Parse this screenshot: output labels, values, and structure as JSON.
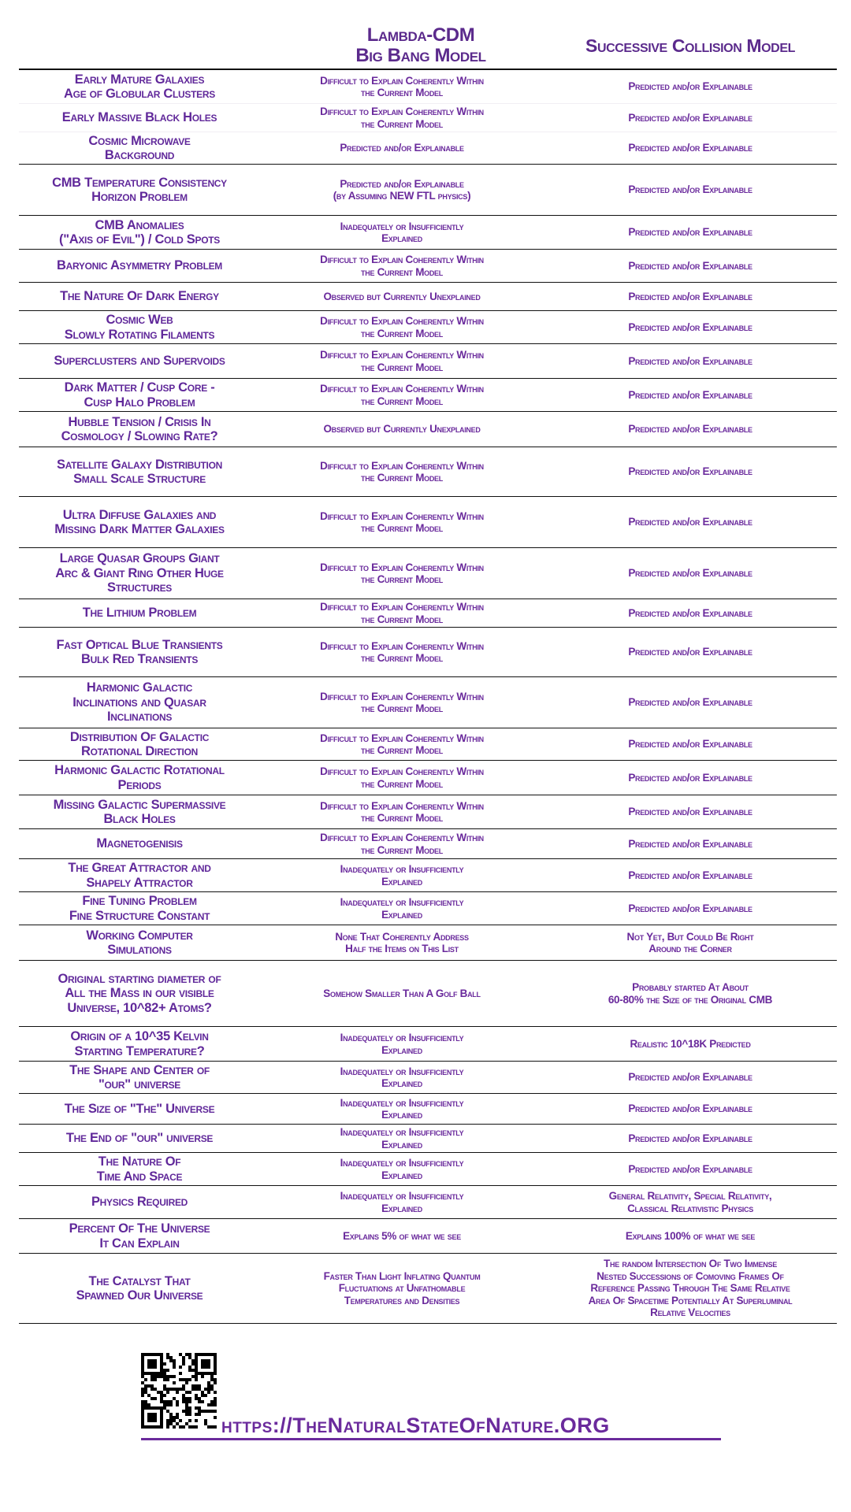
{
  "headers": {
    "lambda": "Lambda-CDM\nBig Bang Model",
    "collision": "Successive Collision Model"
  },
  "rows": [
    {
      "topic": "Early Mature Galaxies\nAge of Globular Clusters",
      "lambda": "Difficult to Explain Coherently Within\nthe Current Model",
      "collision": "Predicted and/or Explainable"
    },
    {
      "topic": "Early Massive Black Holes",
      "lambda": "Difficult to Explain Coherently Within\nthe Current Model",
      "collision": "Predicted and/or Explainable"
    },
    {
      "topic": "Cosmic Microwave\nBackground",
      "lambda": "Predicted and/or Explainable",
      "collision": "Predicted and/or Explainable"
    },
    {
      "topic": "CMB Temperature Consistency\nHorizon Problem",
      "lambda": "Predicted and/or Explainable\n(by Assuming NEW FTL physics)",
      "collision": "Predicted and/or Explainable"
    },
    {
      "topic": "CMB Anomalies\n(\"Axis of Evil\") / Cold Spots",
      "lambda": "Inadequately or Insufficiently\nExplained",
      "collision": "Predicted and/or Explainable"
    },
    {
      "topic": "Baryonic Asymmetry Problem",
      "lambda": "Difficult to Explain Coherently Within\nthe Current Model",
      "collision": "Predicted and/or Explainable"
    },
    {
      "topic": "The Nature Of Dark Energy",
      "lambda": "Observed but Currently Unexplained",
      "collision": "Predicted and/or Explainable"
    },
    {
      "topic": "Cosmic Web\nSlowly Rotating Filaments",
      "lambda": "Difficult to Explain Coherently Within\nthe Current Model",
      "collision": "Predicted and/or Explainable"
    },
    {
      "topic": "Superclusters and Supervoids",
      "lambda": "Difficult to Explain Coherently Within\nthe Current Model",
      "collision": "Predicted and/or Explainable"
    },
    {
      "topic": "Dark Matter / Cusp Core -\nCusp Halo Problem",
      "lambda": "Difficult to Explain Coherently Within\nthe Current Model",
      "collision": "Predicted and/or Explainable"
    },
    {
      "topic": "Hubble Tension / Crisis In\nCosmology / Slowing Rate?",
      "lambda": "Observed but Currently Unexplained",
      "collision": "Predicted and/or Explainable"
    },
    {
      "topic": "Satellite Galaxy Distribution\nSmall Scale Structure",
      "lambda": "Difficult to Explain Coherently Within\nthe Current Model",
      "collision": "Predicted and/or Explainable"
    },
    {
      "topic": "Ultra Diffuse Galaxies and\nMissing Dark Matter Galaxies",
      "lambda": "Difficult to Explain Coherently Within\nthe Current Model",
      "collision": "Predicted and/or Explainable"
    },
    {
      "topic": "Large Quasar Groups      Giant\nArc & Giant Ring    Other Huge\nStructures",
      "lambda": "Difficult to Explain Coherently Within\nthe Current Model",
      "collision": "Predicted and/or Explainable"
    },
    {
      "topic": "The Lithium Problem",
      "lambda": "Difficult to Explain Coherently Within\nthe Current Model",
      "collision": "Predicted and/or Explainable"
    },
    {
      "topic": "Fast Optical Blue Transients\nBulk Red Transients",
      "lambda": "Difficult to Explain Coherently Within\nthe Current Model",
      "collision": "Predicted and/or Explainable"
    },
    {
      "topic": "Harmonic Galactic\nInclinations and Quasar\nInclinations",
      "lambda": "Difficult to Explain Coherently Within\nthe Current Model",
      "collision": "Predicted and/or Explainable"
    },
    {
      "topic": "Distribution Of Galactic\nRotational Direction",
      "lambda": "Difficult to Explain Coherently Within\nthe Current Model",
      "collision": "Predicted and/or Explainable"
    },
    {
      "topic": "Harmonic Galactic Rotational\nPeriods",
      "lambda": "Difficult to Explain Coherently Within\nthe Current Model",
      "collision": "Predicted and/or Explainable"
    },
    {
      "topic": "Missing Galactic Supermassive\nBlack Holes",
      "lambda": "Difficult to Explain Coherently Within\nthe Current Model",
      "collision": "Predicted and/or Explainable"
    },
    {
      "topic": "Magnetogenisis",
      "lambda": "Difficult to Explain Coherently Within\nthe Current Model",
      "collision": "Predicted and/or Explainable"
    },
    {
      "topic": "The Great Attractor and\nShapely Attractor",
      "lambda": "Inadequately or Insufficiently\nExplained",
      "collision": "Predicted and/or Explainable"
    },
    {
      "topic": "Fine Tuning Problem\nFine Structure Constant",
      "lambda": "Inadequately or Insufficiently\nExplained",
      "collision": "Predicted and/or Explainable"
    },
    {
      "topic": "Working Computer\nSimulations",
      "lambda": "None That Coherently Address\nHalf the Items on This List",
      "collision": "Not Yet, But Could Be Right\nAround the Corner"
    },
    {
      "topic": "Original starting diameter of\nAll the Mass in our visible\nUniverse, 10^82+ Atoms?",
      "lambda": "Somehow Smaller Than A Golf Ball",
      "collision": "Probably started At About\n60-80% the Size of the Original CMB"
    },
    {
      "topic": "Origin of a 10^35  Kelvin\nStarting Temperature?",
      "lambda": "Inadequately or Insufficiently\nExplained",
      "collision": "Realistic 10^18K  Predicted"
    },
    {
      "topic": "The Shape and Center of\n\"our\" universe",
      "lambda": "Inadequately or Insufficiently\nExplained",
      "collision": "Predicted and/or Explainable"
    },
    {
      "topic": "The Size of \"The\" Universe",
      "lambda": "Inadequately or Insufficiently\nExplained",
      "collision": "Predicted and/or Explainable"
    },
    {
      "topic": "The End of \"our\" universe",
      "lambda": "Inadequately or Insufficiently\nExplained",
      "collision": "Predicted and/or Explainable"
    },
    {
      "topic": "The Nature Of\nTime And Space",
      "lambda": "Inadequately or Insufficiently\nExplained",
      "collision": "Predicted and/or Explainable"
    },
    {
      "topic": "Physics Required",
      "lambda": "Inadequately or Insufficiently\nExplained",
      "collision": "General Relativity, Special Relativity,\nClassical Relativistic Physics"
    },
    {
      "topic": "Percent Of The Universe\nIt Can Explain",
      "lambda": "Explains 5% of what we see",
      "collision": "Explains 100% of what we see"
    },
    {
      "topic": "The Catalyst That\nSpawned Our Universe",
      "lambda": "Faster Than Light Inflating Quantum\nFluctuations at Unfathomable\nTemperatures and Densities",
      "collision": "The random Intersection Of Two Immense\nNested Successions of Comoving Frames Of\nReference Passing Through The Same Relative\nArea Of Spacetime Potentially At Superluminal\nRelative Velocities"
    }
  ],
  "footer": {
    "qr_icon": "qr-code",
    "url": "https://TheNaturalStateOfNature.ORG"
  },
  "colors": {
    "text": "#6a2a9c",
    "header": "#5b2a8c",
    "rule": "#111111"
  }
}
